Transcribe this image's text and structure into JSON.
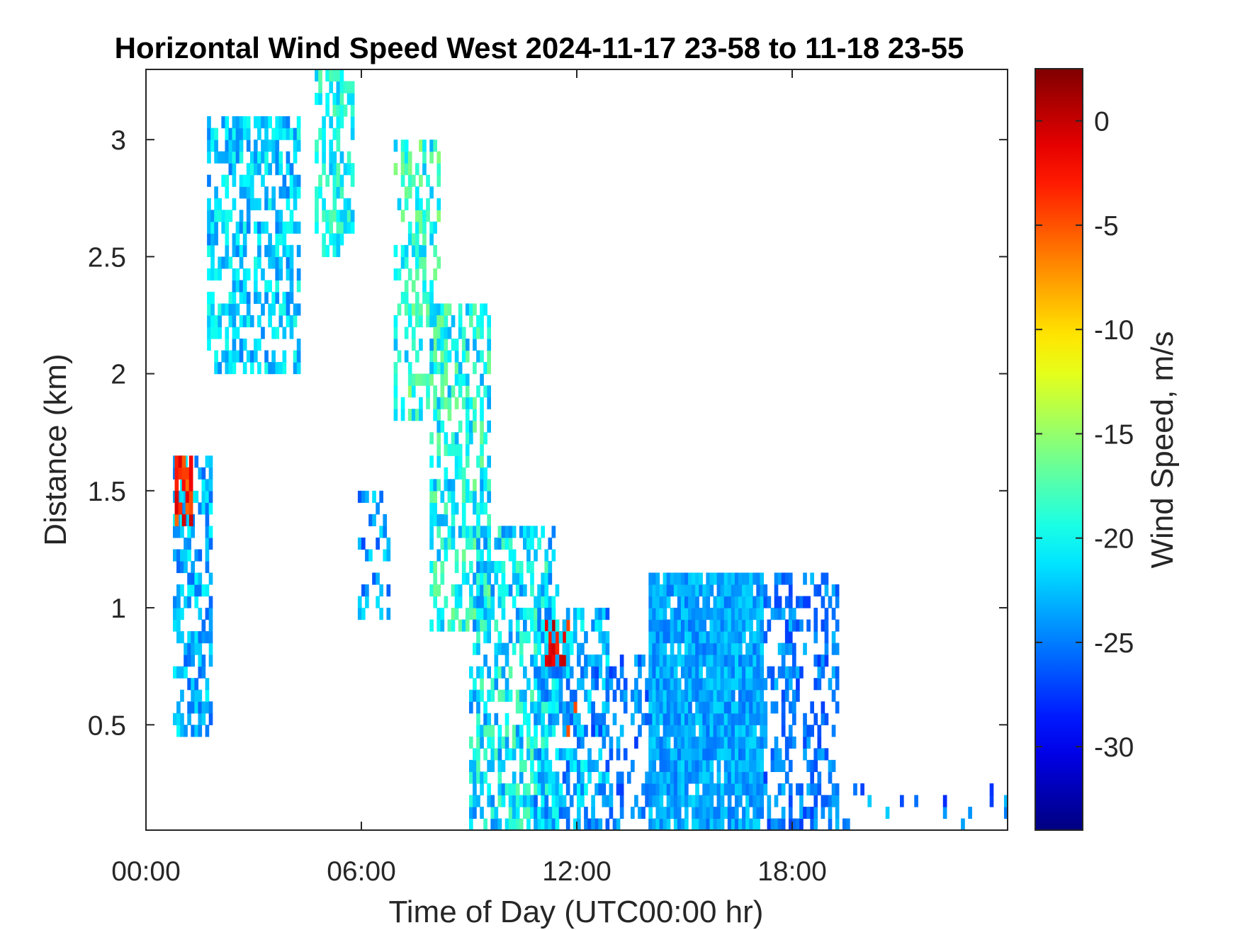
{
  "chart_data": {
    "type": "heatmap",
    "title": "Horizontal Wind Speed West 2024-11-17 23-58 to 11-18 23-55",
    "xlabel": "Time of Day (UTC00:00 hr)",
    "ylabel": "Distance (km)",
    "colorbar_label": "Wind Speed, m/s",
    "colormap": "jet",
    "x_range_hours": [
      0,
      24
    ],
    "y_range_km": [
      0.05,
      3.3
    ],
    "color_range": [
      -34,
      2.5
    ],
    "x_ticks": [
      {
        "value": 0,
        "label": "00:00"
      },
      {
        "value": 6,
        "label": "06:00"
      },
      {
        "value": 12,
        "label": "12:00"
      },
      {
        "value": 18,
        "label": "18:00"
      }
    ],
    "y_ticks": [
      {
        "value": 0.5,
        "label": "0.5"
      },
      {
        "value": 1,
        "label": "1"
      },
      {
        "value": 1.5,
        "label": "1.5"
      },
      {
        "value": 2,
        "label": "2"
      },
      {
        "value": 2.5,
        "label": "2.5"
      },
      {
        "value": 3,
        "label": "3"
      }
    ],
    "colorbar_ticks": [
      {
        "value": 0,
        "label": "0"
      },
      {
        "value": -5,
        "label": "-5"
      },
      {
        "value": -10,
        "label": "-10"
      },
      {
        "value": -15,
        "label": "-15"
      },
      {
        "value": -20,
        "label": "-20"
      },
      {
        "value": -25,
        "label": "-25"
      },
      {
        "value": -30,
        "label": "-30"
      }
    ],
    "regions": [
      {
        "name": "early-low-column",
        "x": [
          0.75,
          1.8
        ],
        "y": [
          0.45,
          1.65
        ],
        "mean": -23,
        "spread": 3,
        "density": 0.6
      },
      {
        "name": "early-core",
        "x": [
          0.8,
          1.3
        ],
        "y": [
          1.35,
          1.65
        ],
        "mean": -3,
        "spread": 3,
        "density": 0.8
      },
      {
        "name": "upper-left-cloud",
        "x": [
          1.7,
          4.3
        ],
        "y": [
          2.0,
          3.1
        ],
        "mean": -22,
        "spread": 3,
        "density": 0.55
      },
      {
        "name": "upper-top-band",
        "x": [
          4.7,
          5.8
        ],
        "y": [
          2.5,
          3.3
        ],
        "mean": -20,
        "spread": 3,
        "density": 0.6
      },
      {
        "name": "sparse-mid-left",
        "x": [
          5.9,
          6.8
        ],
        "y": [
          0.95,
          1.5
        ],
        "mean": -24,
        "spread": 3,
        "density": 0.3
      },
      {
        "name": "descending-band-upper",
        "x": [
          6.9,
          8.2
        ],
        "y": [
          1.8,
          3.0
        ],
        "mean": -19,
        "spread": 4,
        "density": 0.45
      },
      {
        "name": "descending-band-mid",
        "x": [
          7.9,
          9.6
        ],
        "y": [
          0.9,
          2.3
        ],
        "mean": -20,
        "spread": 4,
        "density": 0.55
      },
      {
        "name": "descending-band-low",
        "x": [
          9.0,
          11.5
        ],
        "y": [
          0.05,
          1.35
        ],
        "mean": -21,
        "spread": 4,
        "density": 0.55
      },
      {
        "name": "noon-hotspot",
        "x": [
          11.1,
          11.8
        ],
        "y": [
          0.75,
          0.95
        ],
        "mean": -2,
        "spread": 3,
        "density": 0.85
      },
      {
        "name": "noon-hotspot-low",
        "x": [
          11.6,
          12.0
        ],
        "y": [
          0.45,
          0.6
        ],
        "mean": -3,
        "spread": 3,
        "density": 0.7
      },
      {
        "name": "noon-cluster",
        "x": [
          10.8,
          12.9
        ],
        "y": [
          0.05,
          1.0
        ],
        "mean": -23,
        "spread": 3.5,
        "density": 0.5
      },
      {
        "name": "early-afternoon",
        "x": [
          12.4,
          14.1
        ],
        "y": [
          0.05,
          0.8
        ],
        "mean": -25,
        "spread": 2.5,
        "density": 0.35
      },
      {
        "name": "afternoon-dome",
        "x": [
          14.0,
          17.2
        ],
        "y": [
          0.05,
          1.15
        ],
        "mean": -23.5,
        "spread": 2,
        "density": 0.92
      },
      {
        "name": "late-sparse",
        "x": [
          17.2,
          19.3
        ],
        "y": [
          0.05,
          1.15
        ],
        "mean": -25,
        "spread": 2.5,
        "density": 0.38
      },
      {
        "name": "evening-ground",
        "x": [
          19.0,
          24.0
        ],
        "y": [
          0.05,
          0.25
        ],
        "mean": -25,
        "spread": 3,
        "density": 0.08
      }
    ]
  }
}
